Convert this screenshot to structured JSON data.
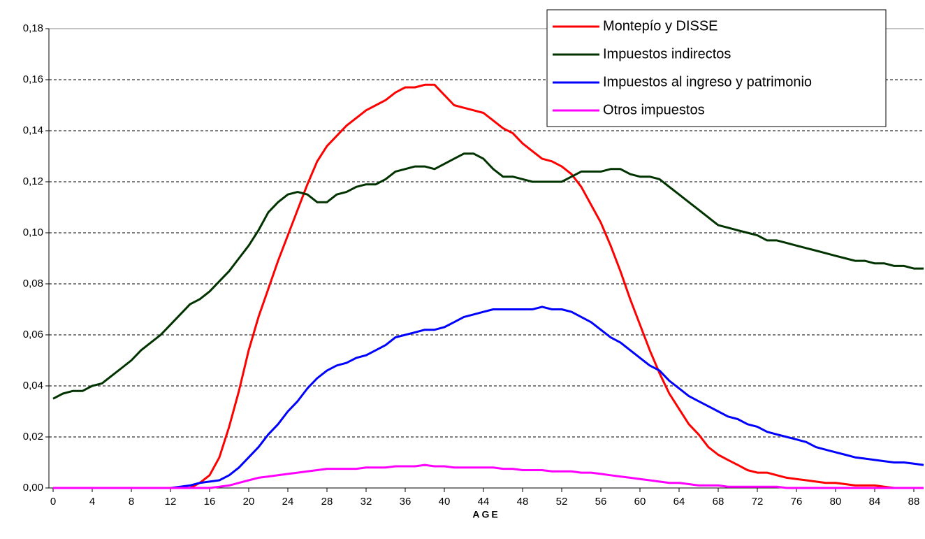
{
  "chart_data": {
    "type": "line",
    "xlabel": "AGE",
    "x": [
      0,
      1,
      2,
      3,
      4,
      5,
      6,
      7,
      8,
      9,
      10,
      11,
      12,
      13,
      14,
      15,
      16,
      17,
      18,
      19,
      20,
      21,
      22,
      23,
      24,
      25,
      26,
      27,
      28,
      29,
      30,
      31,
      32,
      33,
      34,
      35,
      36,
      37,
      38,
      39,
      40,
      41,
      42,
      43,
      44,
      45,
      46,
      47,
      48,
      49,
      50,
      51,
      52,
      53,
      54,
      55,
      56,
      57,
      58,
      59,
      60,
      61,
      62,
      63,
      64,
      65,
      66,
      67,
      68,
      69,
      70,
      71,
      72,
      73,
      74,
      75,
      76,
      77,
      78,
      79,
      80,
      81,
      82,
      83,
      84,
      85,
      86,
      87,
      88,
      89
    ],
    "series": [
      {
        "name": "Montepío y DISSE",
        "color": "#ff0000",
        "values": [
          0,
          0,
          0,
          0,
          0,
          0,
          0,
          0,
          0,
          0,
          0,
          0,
          0,
          0,
          0,
          0.002,
          0.005,
          0.012,
          0.024,
          0.038,
          0.054,
          0.067,
          0.078,
          0.089,
          0.099,
          0.109,
          0.119,
          0.128,
          0.134,
          0.138,
          0.142,
          0.145,
          0.148,
          0.15,
          0.152,
          0.155,
          0.157,
          0.157,
          0.158,
          0.158,
          0.154,
          0.15,
          0.149,
          0.148,
          0.147,
          0.144,
          0.141,
          0.139,
          0.135,
          0.132,
          0.129,
          0.128,
          0.126,
          0.123,
          0.118,
          0.111,
          0.104,
          0.095,
          0.085,
          0.074,
          0.064,
          0.054,
          0.045,
          0.037,
          0.031,
          0.025,
          0.021,
          0.016,
          0.013,
          0.011,
          0.009,
          0.007,
          0.006,
          0.006,
          0.005,
          0.004,
          0.0035,
          0.003,
          0.0025,
          0.002,
          0.002,
          0.0015,
          0.001,
          0.001,
          0.001,
          0.0005,
          0,
          0,
          0,
          0
        ]
      },
      {
        "name": "Impuestos indirectos",
        "color": "#003300",
        "values": [
          0.035,
          0.037,
          0.038,
          0.038,
          0.04,
          0.041,
          0.044,
          0.047,
          0.05,
          0.054,
          0.057,
          0.06,
          0.064,
          0.068,
          0.072,
          0.074,
          0.077,
          0.081,
          0.085,
          0.09,
          0.095,
          0.101,
          0.108,
          0.112,
          0.115,
          0.116,
          0.115,
          0.112,
          0.112,
          0.115,
          0.116,
          0.118,
          0.119,
          0.119,
          0.121,
          0.124,
          0.125,
          0.126,
          0.126,
          0.125,
          0.127,
          0.129,
          0.131,
          0.131,
          0.129,
          0.125,
          0.122,
          0.122,
          0.121,
          0.12,
          0.12,
          0.12,
          0.12,
          0.122,
          0.124,
          0.124,
          0.124,
          0.125,
          0.125,
          0.123,
          0.122,
          0.122,
          0.121,
          0.118,
          0.115,
          0.112,
          0.109,
          0.106,
          0.103,
          0.102,
          0.101,
          0.1,
          0.099,
          0.097,
          0.097,
          0.096,
          0.095,
          0.094,
          0.093,
          0.092,
          0.091,
          0.09,
          0.089,
          0.089,
          0.088,
          0.088,
          0.087,
          0.087,
          0.086,
          0.086
        ]
      },
      {
        "name": "Impuestos al ingreso y patrimonio",
        "color": "#0000ff",
        "values": [
          0,
          0,
          0,
          0,
          0,
          0,
          0,
          0,
          0,
          0,
          0,
          0,
          0,
          0.0005,
          0.001,
          0.002,
          0.0025,
          0.003,
          0.005,
          0.008,
          0.012,
          0.016,
          0.021,
          0.025,
          0.03,
          0.034,
          0.039,
          0.043,
          0.046,
          0.048,
          0.049,
          0.051,
          0.052,
          0.054,
          0.056,
          0.059,
          0.06,
          0.061,
          0.062,
          0.062,
          0.063,
          0.065,
          0.067,
          0.068,
          0.069,
          0.07,
          0.07,
          0.07,
          0.07,
          0.07,
          0.071,
          0.07,
          0.07,
          0.069,
          0.067,
          0.065,
          0.062,
          0.059,
          0.057,
          0.054,
          0.051,
          0.048,
          0.046,
          0.042,
          0.039,
          0.036,
          0.034,
          0.032,
          0.03,
          0.028,
          0.027,
          0.025,
          0.024,
          0.022,
          0.021,
          0.02,
          0.019,
          0.018,
          0.016,
          0.015,
          0.014,
          0.013,
          0.012,
          0.0115,
          0.011,
          0.0105,
          0.01,
          0.01,
          0.0095,
          0.009
        ]
      },
      {
        "name": "Otros impuestos",
        "color": "#ff00ff",
        "values": [
          0,
          0,
          0,
          0,
          0,
          0,
          0,
          0,
          0,
          0,
          0,
          0,
          0,
          0,
          0,
          0,
          0,
          0.0005,
          0.001,
          0.002,
          0.003,
          0.004,
          0.0045,
          0.005,
          0.0055,
          0.006,
          0.0065,
          0.007,
          0.0075,
          0.0075,
          0.0075,
          0.0075,
          0.008,
          0.008,
          0.008,
          0.0085,
          0.0085,
          0.0085,
          0.009,
          0.0085,
          0.0085,
          0.008,
          0.008,
          0.008,
          0.008,
          0.008,
          0.0075,
          0.0075,
          0.007,
          0.007,
          0.007,
          0.0065,
          0.0065,
          0.0065,
          0.006,
          0.006,
          0.0055,
          0.005,
          0.0045,
          0.004,
          0.0035,
          0.003,
          0.0025,
          0.002,
          0.002,
          0.0015,
          0.001,
          0.001,
          0.001,
          0.0005,
          0.0005,
          0.0005,
          0.0005,
          0.0005,
          0.0005,
          0,
          0,
          0,
          0,
          0,
          0,
          0,
          0,
          0,
          0,
          0,
          0,
          0,
          0,
          0
        ]
      }
    ],
    "xlim": [
      -0.43,
      89
    ],
    "xticks": [
      0,
      4,
      8,
      12,
      16,
      20,
      24,
      28,
      32,
      36,
      40,
      44,
      48,
      52,
      56,
      60,
      64,
      68,
      72,
      76,
      80,
      84,
      88
    ],
    "ylim": [
      0,
      0.18
    ],
    "yticks": [
      {
        "value": 0,
        "label": "0,00"
      },
      {
        "value": 0.02,
        "label": "0,02"
      },
      {
        "value": 0.04,
        "label": "0,04"
      },
      {
        "value": 0.06,
        "label": "0,06"
      },
      {
        "value": 0.08,
        "label": "0,08"
      },
      {
        "value": 0.1,
        "label": "0,10"
      },
      {
        "value": 0.12,
        "label": "0,12"
      },
      {
        "value": 0.14,
        "label": "0,14"
      },
      {
        "value": 0.16,
        "label": "0,16"
      },
      {
        "value": 0.18,
        "label": "0,18"
      }
    ],
    "grid": true,
    "legend": "upper right"
  }
}
